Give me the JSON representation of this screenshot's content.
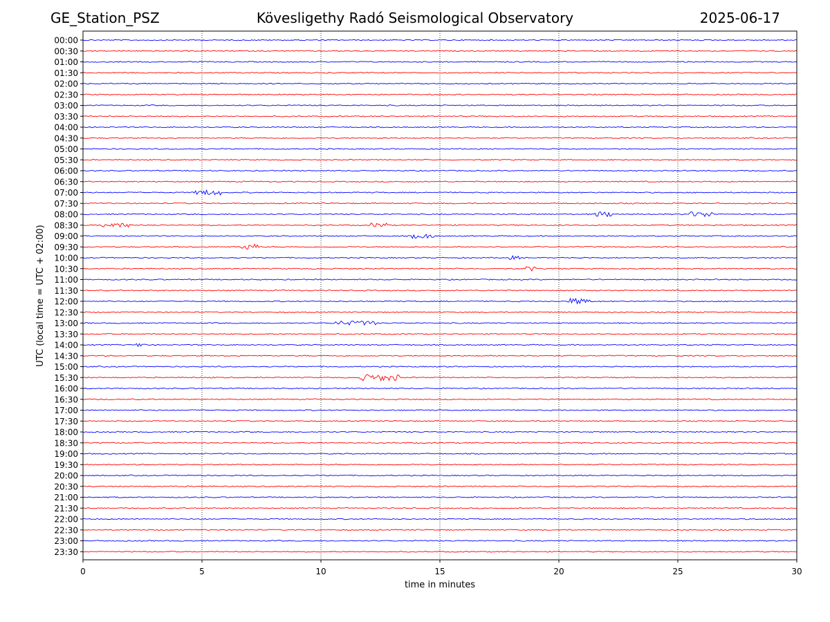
{
  "header": {
    "station": "GE_Station_PSZ",
    "observatory": "Kövesligethy Radó Seismological Observatory",
    "date": "2025-06-17"
  },
  "colors": {
    "even_trace": "#0000ff",
    "odd_trace": "#ff0000",
    "axes": "#000000",
    "grid": "#000000"
  },
  "chart_data": {
    "type": "line",
    "title": "Kövesligethy Radó Seismological Observatory",
    "xlabel": "time in minutes",
    "ylabel": "UTC (local time = UTC + 02:00)",
    "xlim": [
      0,
      30
    ],
    "x_ticks": [
      0,
      5,
      10,
      15,
      20,
      25,
      30
    ],
    "grid": "vertical dotted lines at x ticks",
    "trace_rows": [
      "00:00",
      "00:30",
      "01:00",
      "01:30",
      "02:00",
      "02:30",
      "03:00",
      "03:30",
      "04:00",
      "04:30",
      "05:00",
      "05:30",
      "06:00",
      "06:30",
      "07:00",
      "07:30",
      "08:00",
      "08:30",
      "09:00",
      "09:30",
      "10:00",
      "10:30",
      "11:00",
      "11:30",
      "12:00",
      "12:30",
      "13:00",
      "13:30",
      "14:00",
      "14:30",
      "15:00",
      "15:30",
      "16:00",
      "16:30",
      "17:00",
      "17:30",
      "18:00",
      "18:30",
      "19:00",
      "19:30",
      "20:00",
      "20:30",
      "21:00",
      "21:30",
      "22:00",
      "22:30",
      "23:00",
      "23:30"
    ],
    "trace_colors": "alternating blue (on the hour) and red (half hour)",
    "events": [
      {
        "row": "07:00",
        "start": 4.7,
        "end": 5.8,
        "amp": 3
      },
      {
        "row": "08:00",
        "start": 21.5,
        "end": 22.3,
        "amp": 3
      },
      {
        "row": "08:00",
        "start": 25.5,
        "end": 26.5,
        "amp": 3
      },
      {
        "row": "08:30",
        "start": 0.8,
        "end": 2.0,
        "amp": 2.5
      },
      {
        "row": "08:30",
        "start": 12.1,
        "end": 12.8,
        "amp": 2.5
      },
      {
        "row": "09:00",
        "start": 13.8,
        "end": 14.8,
        "amp": 2.5
      },
      {
        "row": "09:30",
        "start": 6.6,
        "end": 7.4,
        "amp": 3.5
      },
      {
        "row": "10:00",
        "start": 17.9,
        "end": 18.4,
        "amp": 2
      },
      {
        "row": "10:30",
        "start": 18.6,
        "end": 19.0,
        "amp": 3
      },
      {
        "row": "12:00",
        "start": 20.4,
        "end": 21.3,
        "amp": 3.5
      },
      {
        "row": "13:00",
        "start": 10.6,
        "end": 12.3,
        "amp": 2.5
      },
      {
        "row": "14:00",
        "start": 2.2,
        "end": 2.7,
        "amp": 2
      },
      {
        "row": "15:30",
        "start": 11.6,
        "end": 13.3,
        "amp": 4
      }
    ]
  }
}
